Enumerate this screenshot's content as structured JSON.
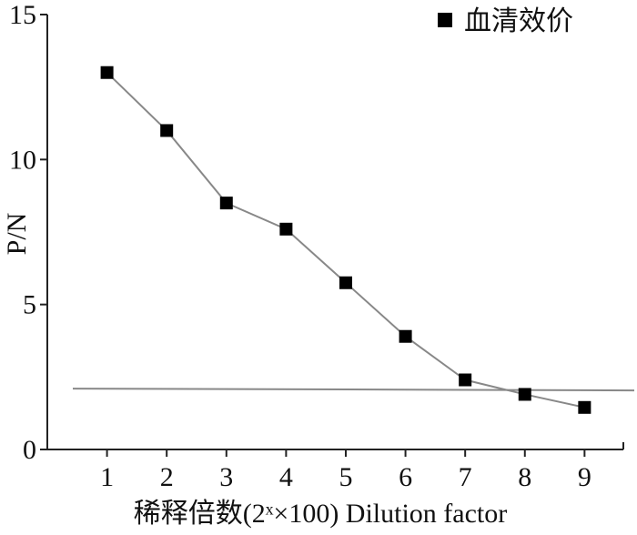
{
  "chart_data": {
    "type": "line",
    "xlabel": "稀释倍数(2ˣ×100) Dilution factor",
    "ylabel": "P/N",
    "xlim": [
      0.0,
      9.65
    ],
    "ylim": [
      0,
      15
    ],
    "x_ticks": [
      1,
      2,
      3,
      4,
      5,
      6,
      7,
      8,
      9
    ],
    "y_ticks": [
      0,
      5,
      10,
      15
    ],
    "x": [
      1,
      2,
      3,
      4,
      5,
      6,
      7,
      8,
      9
    ],
    "series": [
      {
        "name": "血清效价",
        "values": [
          13.0,
          11.0,
          8.5,
          7.6,
          5.75,
          3.9,
          2.4,
          1.9,
          1.45
        ],
        "color": "#888888",
        "marker": "square",
        "marker_color": "#000000"
      }
    ],
    "reference_line": {
      "y": 2.1,
      "x_range": [
        0.0,
        9.65
      ],
      "color": "#888888"
    },
    "grid": false,
    "legend_position": "top-right"
  }
}
